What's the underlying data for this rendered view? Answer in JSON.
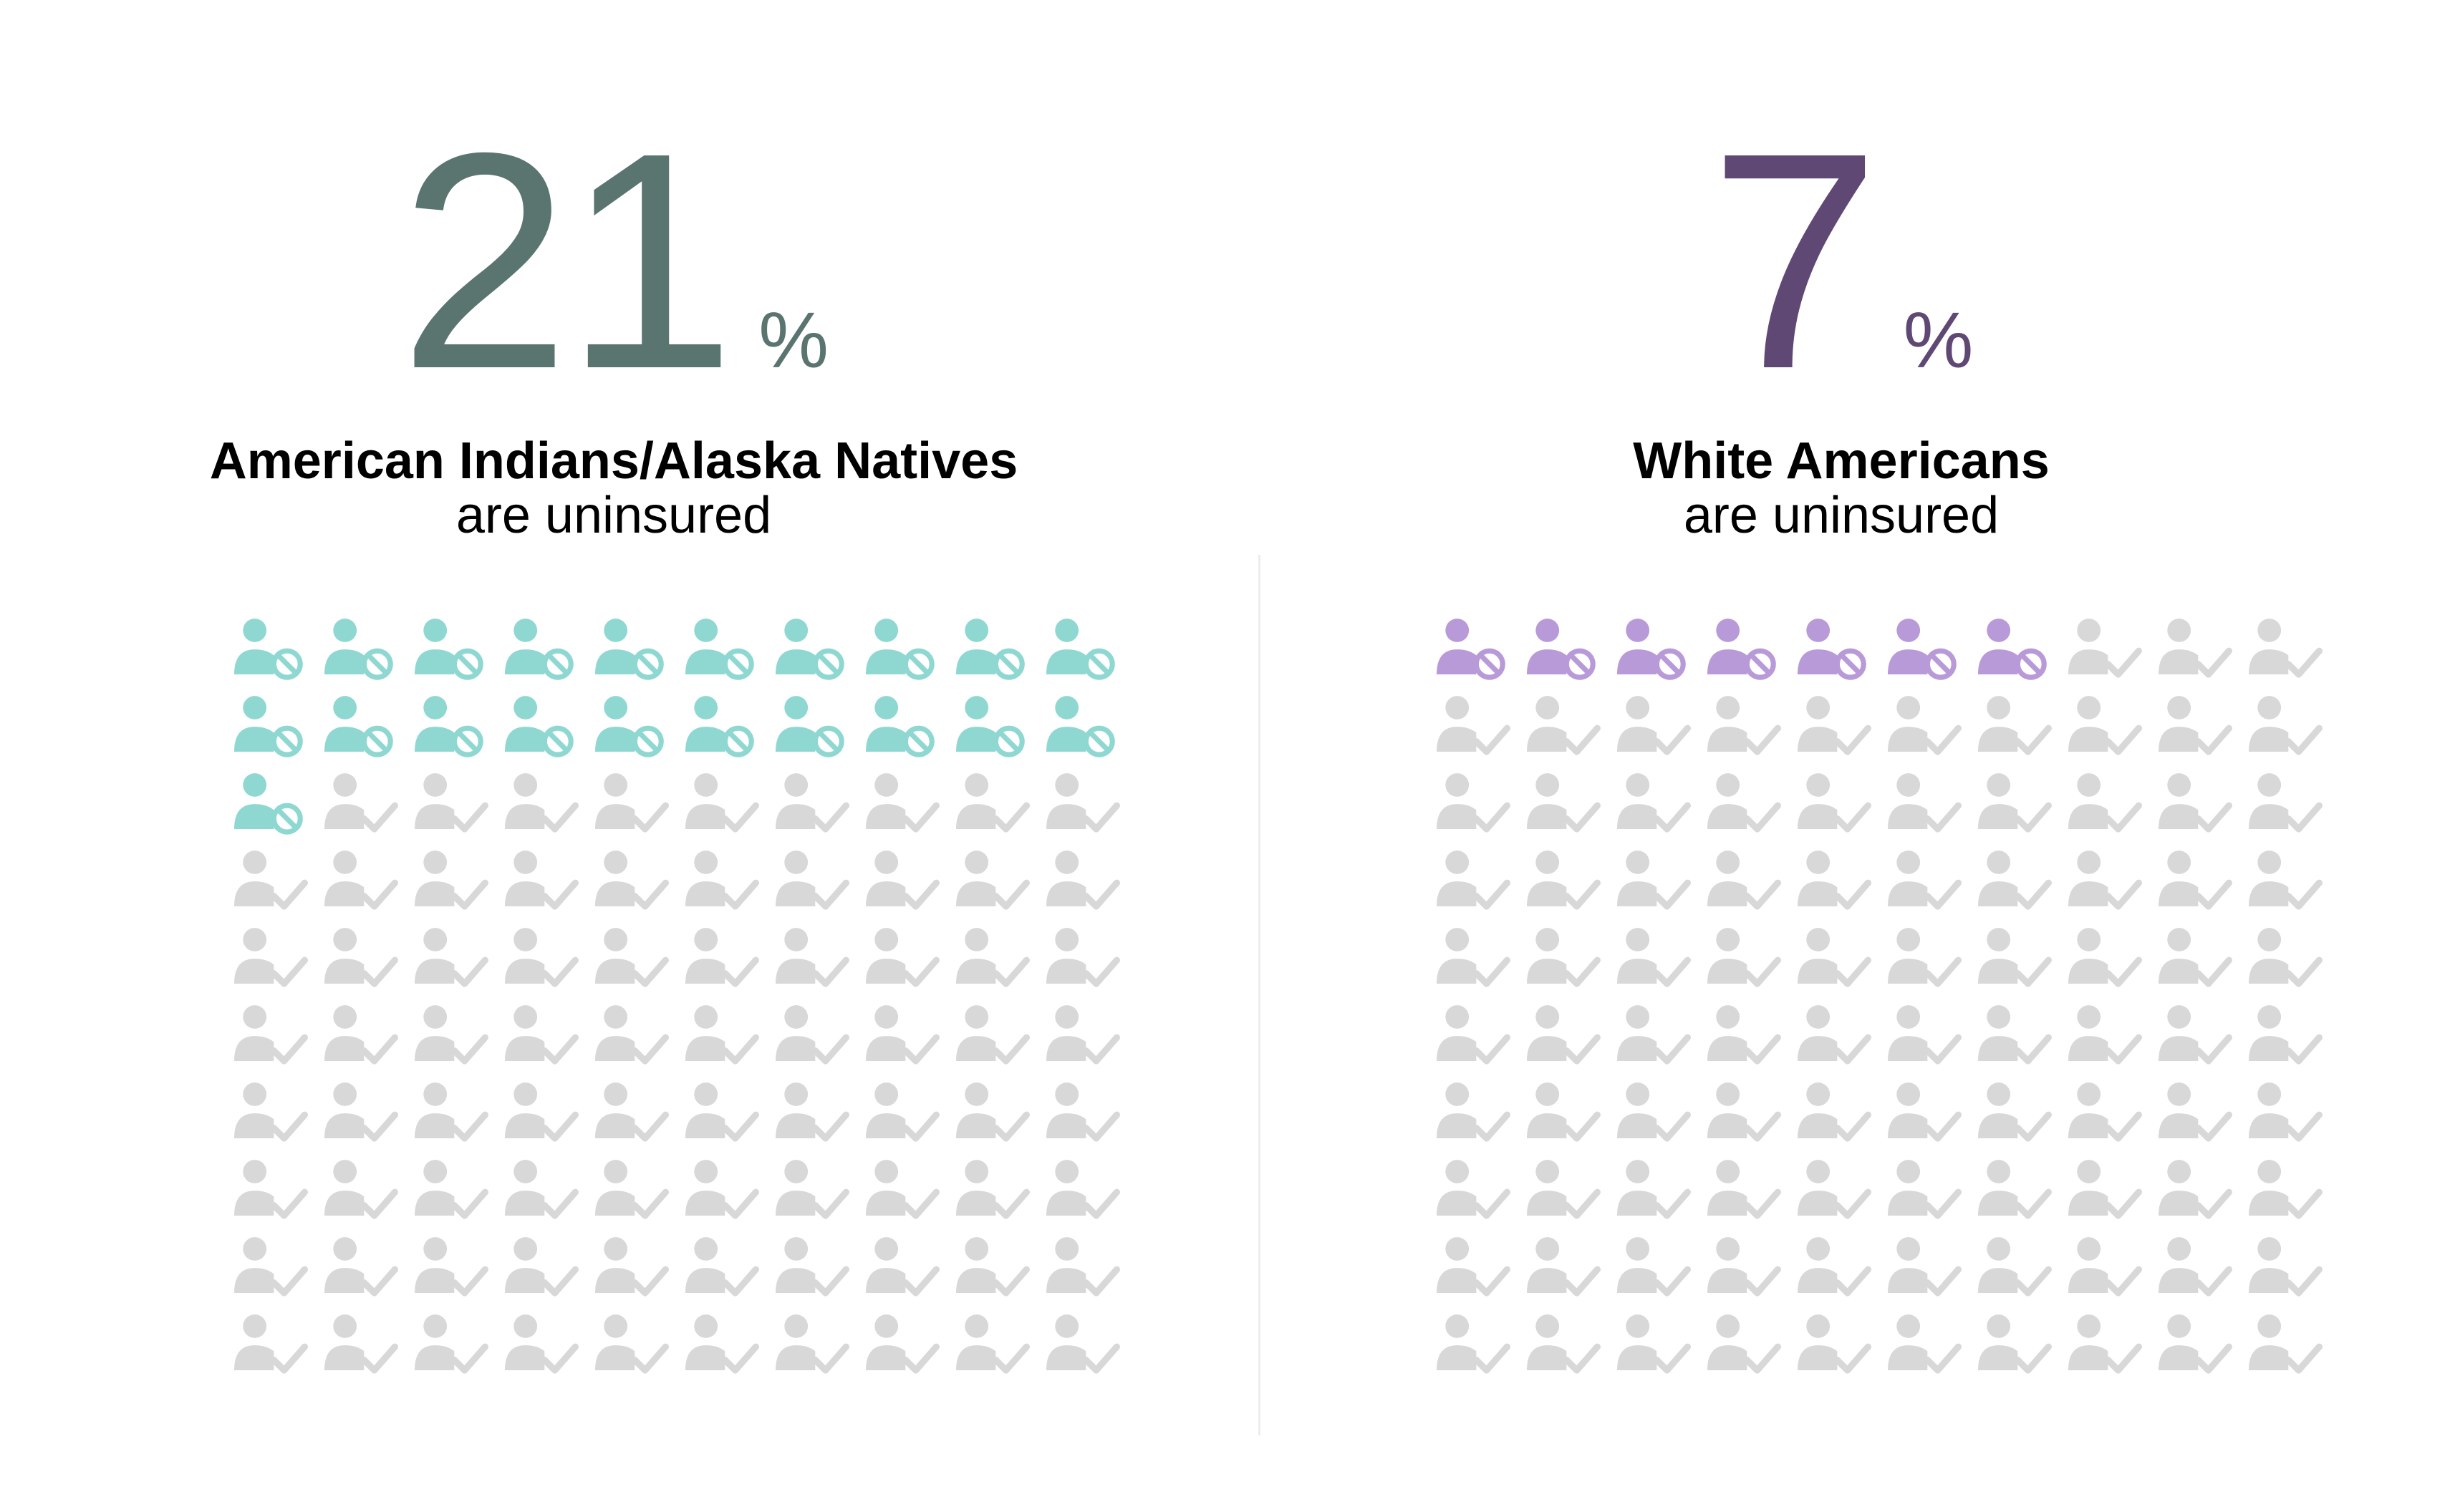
{
  "chart_data": [
    {
      "type": "waffle",
      "value": 21,
      "total": 100,
      "rows": 10,
      "columns": 10,
      "number": "21",
      "unit": "%",
      "title": "American Indians/Alaska Natives",
      "subtitle": "are uninsured",
      "colors": {
        "number": "#5a7570",
        "highlight": "#8fd8d2",
        "base": "#d8d8d8"
      },
      "icons": {
        "highlight": "person-no-icon",
        "base": "person-check-icon"
      }
    },
    {
      "type": "waffle",
      "value": 7,
      "total": 100,
      "rows": 10,
      "columns": 10,
      "number": "7",
      "unit": "%",
      "title": "White Americans",
      "subtitle": "are uninsured",
      "colors": {
        "number": "#604875",
        "highlight": "#b99ad8",
        "base": "#d8d8d8"
      },
      "icons": {
        "highlight": "person-no-icon",
        "base": "person-check-icon"
      }
    }
  ]
}
